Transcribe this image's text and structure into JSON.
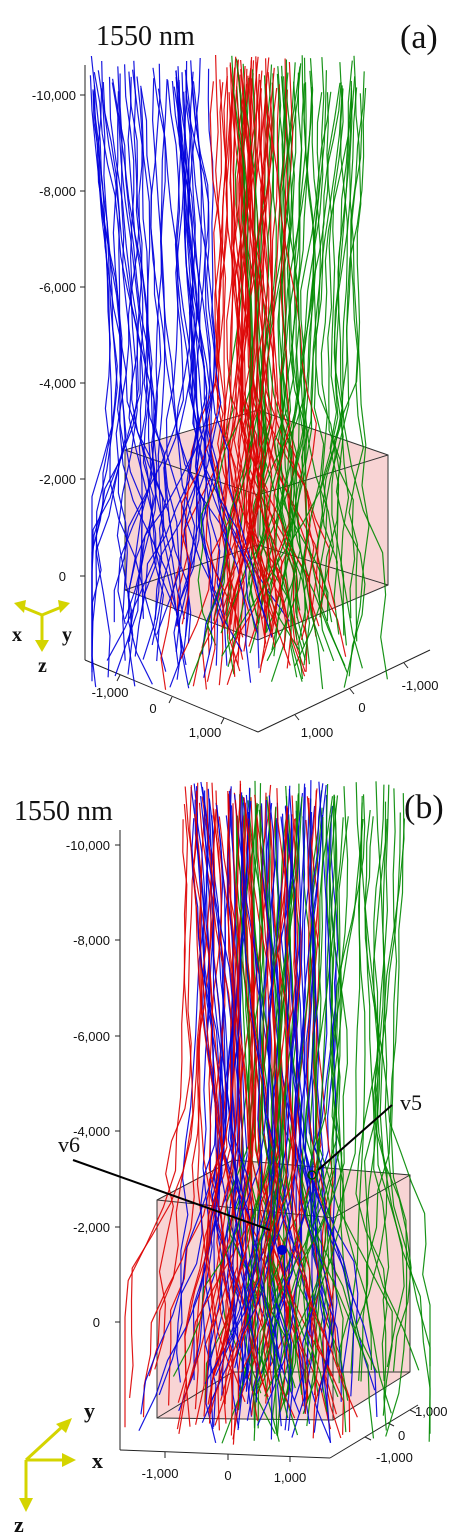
{
  "panels": [
    {
      "id": "a",
      "label": "(a)",
      "wavelength": "1550 nm",
      "z_ticks": [
        "-10,000",
        "-8,000",
        "-6,000",
        "-4,000",
        "-2,000",
        "0"
      ],
      "x_ticks": [
        "-1,000",
        "0",
        "1,000"
      ],
      "y_ticks": [
        "-1,000",
        "0",
        "1,000"
      ],
      "triad": {
        "x": "x",
        "y": "y",
        "z": "z"
      },
      "triad_color": "#d4d400"
    },
    {
      "id": "b",
      "label": "(b)",
      "wavelength": "1550 nm",
      "z_ticks": [
        "-10,000",
        "-8,000",
        "-6,000",
        "-4,000",
        "-2,000",
        "0"
      ],
      "x_ticks": [
        "-1,000",
        "0",
        "1,000"
      ],
      "y_ticks": [
        "1,000",
        "0",
        "-1,000"
      ],
      "triad": {
        "x": "x",
        "y": "y",
        "z": "z"
      },
      "triad_color": "#d4d400",
      "annotations": [
        {
          "text": "v6"
        },
        {
          "text": "v5"
        }
      ]
    }
  ],
  "stream_colors": [
    "#0000dd",
    "#dd0000",
    "#008800"
  ]
}
